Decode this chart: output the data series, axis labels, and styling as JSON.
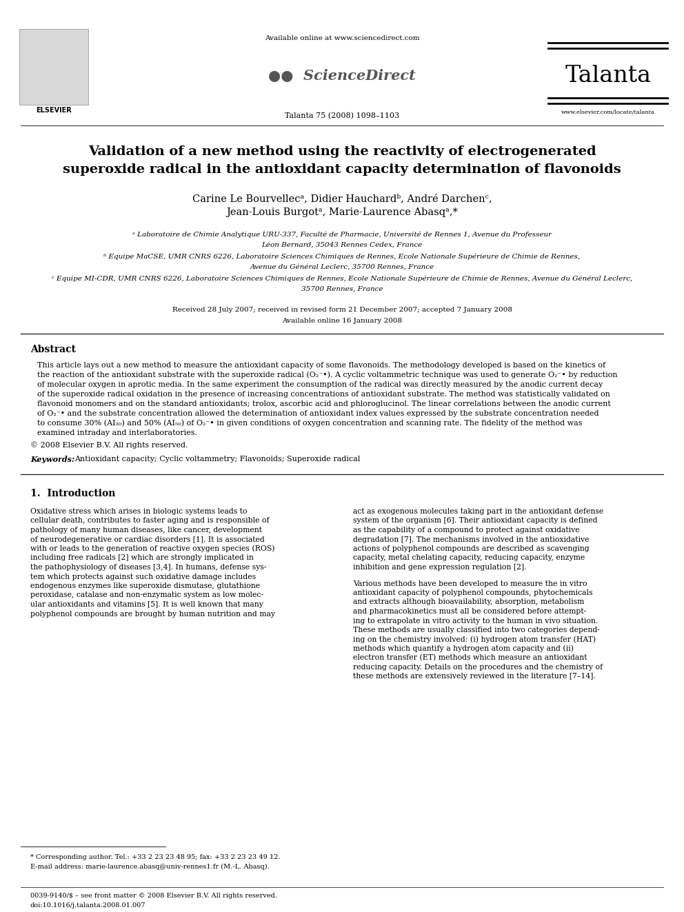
{
  "background_color": "#ffffff",
  "page_width": 9.92,
  "page_height": 13.23,
  "journal_name": "Talanta",
  "journal_info": "Talanta 75 (2008) 1098–1103",
  "available_online": "Available online at www.sciencedirect.com",
  "sciencedirect_text": "ScienceDirect",
  "elsevier_text": "ELSEVIER",
  "website": "www.elsevier.com/locate/talanta",
  "title_line1": "Validation of a new method using the reactivity of electrogenerated",
  "title_line2": "superoxide radical in the antioxidant capacity determination of flavonoids",
  "authors": "Carine Le Bourvellecᵃ, Didier Hauchardᵇ, André Darchenᶜ,",
  "authors2": "Jean-Louis Burgotᵃ, Marie-Laurence Abasqᵃ,*",
  "affil_a": "ᵃ Laboratoire de Chimie Analytique URU-337, Faculté de Pharmacie, Université de Rennes 1, Avenue du Professeur",
  "affil_a2": "Léon Bernard, 35043 Rennes Cedex, France",
  "affil_b": "ᵇ Equipe MaCSE, UMR CNRS 6226, Laboratoire Sciences Chimiques de Rennes, Ecole Nationale Supérieure de Chimie de Rennes,",
  "affil_b2": "Avenue du Général Leclerc, 35700 Rennes, France",
  "affil_c": "ᶜ Equipe MI-CDR, UMR CNRS 6226, Laboratoire Sciences Chimiques de Rennes, Ecole Nationale Supérieure de Chimie de Rennes, Avenue du Général Leclerc,",
  "affil_c2": "35700 Rennes, France",
  "received": "Received 28 July 2007; received in revised form 21 December 2007; accepted 7 January 2008",
  "available": "Available online 16 January 2008",
  "abstract_title": "Abstract",
  "copyright": "© 2008 Elsevier B.V. All rights reserved.",
  "keywords_label": "Keywords:",
  "keywords": "Antioxidant capacity; Cyclic voltammetry; Flavonoids; Superoxide radical",
  "section1_title": "1.  Introduction",
  "footnote1": "* Corresponding author. Tel.: +33 2 23 23 48 95; fax: +33 2 23 23 49 12.",
  "footnote2": "E-mail address: marie-laurence.abasq@univ-rennes1.fr (M.-L. Abasq).",
  "footer1": "0039-9140/$ – see front matter © 2008 Elsevier B.V. All rights reserved.",
  "footer2": "doi:10.1016/j.talanta.2008.01.007"
}
